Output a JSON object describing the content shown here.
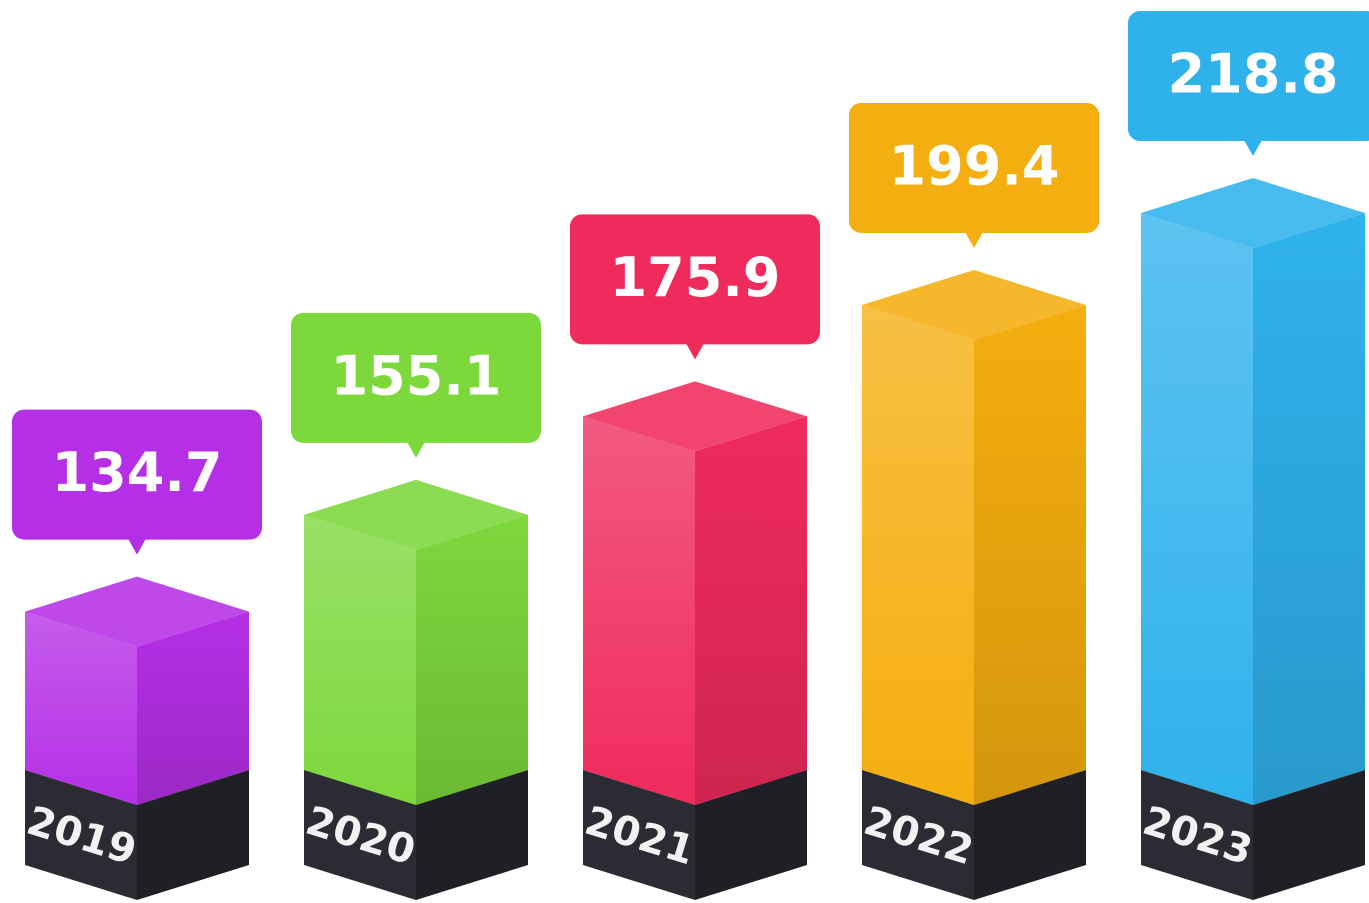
{
  "chart_data": {
    "type": "bar",
    "categories": [
      "2019",
      "2020",
      "2021",
      "2022",
      "2023"
    ],
    "values": [
      134.7,
      155.1,
      175.9,
      199.4,
      218.8
    ],
    "colors": [
      "#b52fe6",
      "#7dd83c",
      "#ef2b5c",
      "#f5ae0f",
      "#2fb2ec"
    ]
  }
}
